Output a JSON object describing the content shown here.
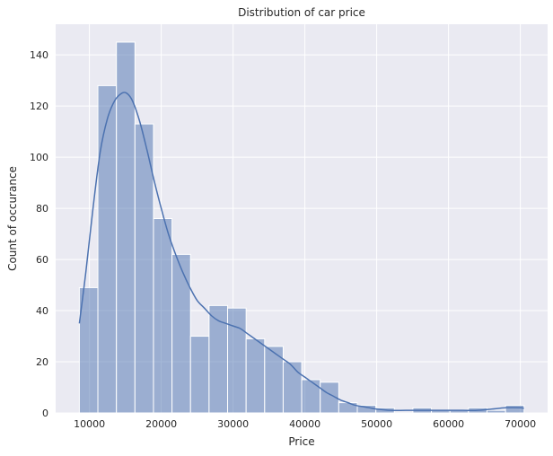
{
  "chart_data": {
    "type": "bar",
    "subtype": "histogram-with-kde",
    "title": "Distribution of car price",
    "xlabel": "Price",
    "ylabel": "Count of occurance",
    "xlim": [
      5300,
      73800
    ],
    "ylim": [
      0,
      152
    ],
    "xticks": [
      10000,
      20000,
      30000,
      40000,
      50000,
      60000,
      70000
    ],
    "yticks": [
      0,
      20,
      40,
      60,
      80,
      100,
      120,
      140
    ],
    "grid": true,
    "legend": "none",
    "bin_edges": [
      8600,
      11180,
      13760,
      16340,
      18920,
      21500,
      24080,
      26660,
      29240,
      31820,
      34400,
      36980,
      39560,
      42140,
      44720,
      47300,
      49880,
      52460,
      55040,
      57620,
      60200,
      62780,
      65360,
      67940,
      70520
    ],
    "counts": [
      49,
      128,
      145,
      113,
      76,
      62,
      30,
      42,
      41,
      29,
      26,
      20,
      13,
      12,
      4,
      3,
      2,
      0,
      2,
      1,
      1,
      2,
      1,
      3
    ],
    "kde": {
      "x": [
        8600,
        9500,
        10500,
        11500,
        12500,
        13500,
        14500,
        15200,
        16000,
        17000,
        18000,
        19000,
        20000,
        21000,
        22000,
        23000,
        24000,
        25000,
        26000,
        27000,
        28000,
        29000,
        30000,
        31000,
        32000,
        33000,
        34000,
        35000,
        36000,
        37000,
        38000,
        39000,
        40000,
        41000,
        42000,
        43000,
        44000,
        45000,
        46000,
        47000,
        48000,
        49000,
        50000,
        52000,
        54000,
        56000,
        58000,
        60000,
        62000,
        64000,
        66000,
        68000,
        70000,
        70500
      ],
      "y": [
        35,
        55,
        80,
        102,
        115,
        122,
        125,
        125,
        122,
        114,
        103,
        91,
        80,
        70,
        62,
        55,
        49,
        44,
        41,
        38,
        36,
        35,
        34,
        33,
        31,
        29,
        27,
        25,
        23,
        21,
        19,
        16,
        14,
        12,
        10,
        8,
        6.5,
        5,
        4,
        3,
        2.5,
        2,
        1.5,
        1,
        1,
        1,
        1,
        1,
        1,
        1,
        1.5,
        2,
        2,
        1.8
      ]
    },
    "colors": {
      "bar_fill": "#4c72b0",
      "bar_opacity": "0.5",
      "kde_line": "#4c72b0",
      "plot_background": "#eaeaf2",
      "grid": "#ffffff"
    }
  }
}
